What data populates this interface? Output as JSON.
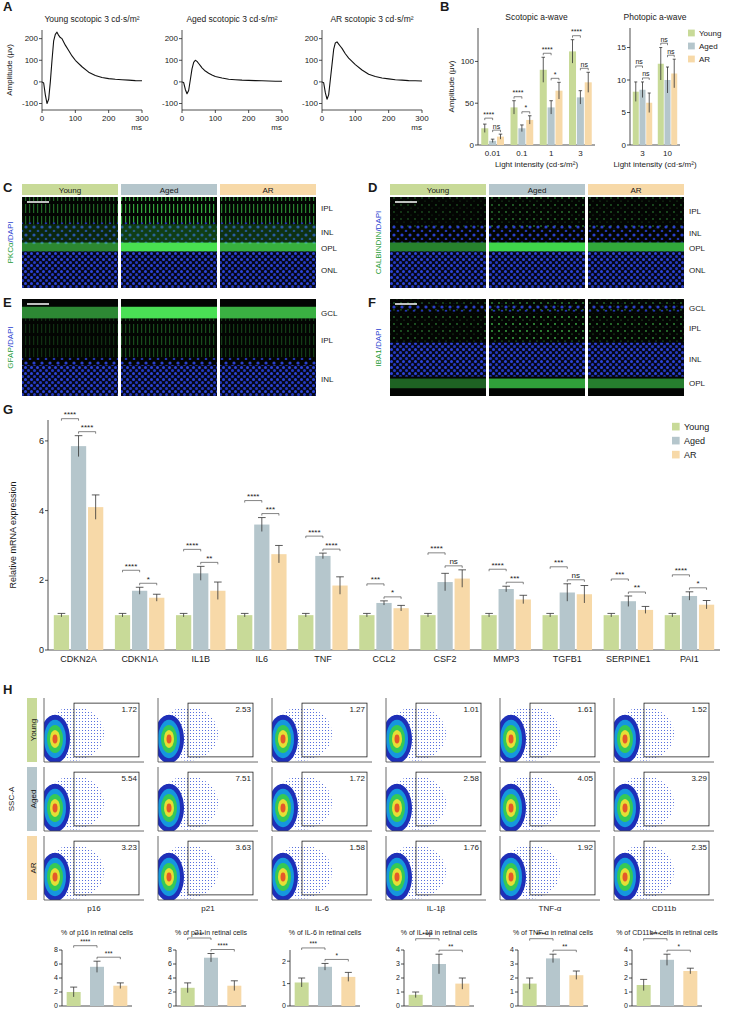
{
  "chart_data": [
    {
      "panel": "A",
      "type": "line",
      "title": "Young scotopic 3 cd·s/m²",
      "x": [
        0,
        5,
        10,
        15,
        20,
        25,
        30,
        35,
        40,
        45,
        50,
        55,
        60,
        70,
        80,
        90,
        100,
        120,
        140,
        160,
        180,
        200,
        220,
        240,
        260,
        280,
        300
      ],
      "values": [
        0,
        -5,
        -60,
        -100,
        -80,
        0,
        100,
        190,
        220,
        230,
        215,
        205,
        200,
        170,
        145,
        120,
        100,
        70,
        45,
        30,
        20,
        15,
        12,
        10,
        8,
        6,
        5
      ],
      "color": "#111111",
      "xlim": [
        0,
        300
      ],
      "xticks": [
        0,
        100,
        200,
        300
      ],
      "ylim": [
        -130,
        240
      ],
      "yticks": [
        -100,
        0,
        100,
        200
      ],
      "x_label": "ms",
      "y_label": "Amplitude (μv)"
    },
    {
      "type": "line",
      "title": "Aged scotopic 3 cd·s/m²",
      "x": [
        0,
        5,
        10,
        15,
        20,
        25,
        30,
        35,
        40,
        45,
        50,
        55,
        60,
        70,
        80,
        90,
        100,
        120,
        140,
        160,
        180,
        200,
        220,
        240,
        260,
        280,
        300
      ],
      "values": [
        0,
        -3,
        -35,
        -55,
        -40,
        10,
        60,
        90,
        100,
        95,
        85,
        75,
        65,
        50,
        40,
        32,
        25,
        18,
        12,
        10,
        8,
        7,
        6,
        5,
        4,
        3,
        3
      ],
      "color": "#111111",
      "xlim": [
        0,
        300
      ],
      "xticks": [
        0,
        100,
        200,
        300
      ],
      "ylim": [
        -130,
        240
      ],
      "yticks": [
        -100,
        0,
        100,
        200
      ],
      "x_label": "ms"
    },
    {
      "type": "line",
      "title": "AR scotopic 3 cd·s/m²",
      "x": [
        0,
        5,
        10,
        15,
        20,
        25,
        30,
        35,
        40,
        45,
        50,
        55,
        60,
        70,
        80,
        90,
        100,
        120,
        140,
        160,
        180,
        200,
        220,
        240,
        260,
        280,
        300
      ],
      "values": [
        0,
        -4,
        -50,
        -80,
        -60,
        10,
        80,
        150,
        180,
        185,
        175,
        165,
        155,
        130,
        110,
        95,
        80,
        55,
        35,
        25,
        18,
        14,
        10,
        8,
        6,
        5,
        4
      ],
      "color": "#111111",
      "xlim": [
        0,
        300
      ],
      "xticks": [
        0,
        100,
        200,
        300
      ],
      "ylim": [
        -130,
        240
      ],
      "yticks": [
        -100,
        0,
        100,
        200
      ],
      "x_label": "ms"
    },
    {
      "panel": "B",
      "type": "bar",
      "title": "Scotopic a-wave",
      "categories": [
        "0.01",
        "0.1",
        "1",
        "3"
      ],
      "series": [
        {
          "color": "#c8da98",
          "values": [
            20,
            45,
            90,
            112
          ],
          "errors": [
            5,
            8,
            15,
            14
          ]
        },
        {
          "color": "#b5c6cc",
          "values": [
            5,
            20,
            45,
            57
          ],
          "errors": [
            2,
            4,
            8,
            8
          ]
        },
        {
          "color": "#f7d9a8",
          "values": [
            10,
            30,
            65,
            75
          ],
          "errors": [
            3,
            5,
            10,
            12
          ]
        }
      ],
      "significance": [
        [
          "****",
          "ns"
        ],
        [
          "****",
          "*"
        ],
        [
          "****",
          "*"
        ],
        [
          "****",
          "ns"
        ]
      ],
      "ylim": [
        0,
        140
      ],
      "yticks": [
        0,
        50,
        100
      ],
      "x_label": "Light intensity (cd·s/m²)",
      "y_label": "Amplitude (μv)"
    },
    {
      "type": "bar",
      "title": "Photopic a-wave",
      "categories": [
        "3",
        "10"
      ],
      "series": [
        {
          "name": "Young",
          "color": "#c8da98",
          "values": [
            8.2,
            12.5
          ],
          "errors": [
            1.5,
            2.5
          ]
        },
        {
          "name": "Aged",
          "color": "#b5c6cc",
          "values": [
            8.5,
            10
          ],
          "errors": [
            1.2,
            2
          ]
        },
        {
          "name": "AR",
          "color": "#f7d9a8",
          "values": [
            6.5,
            11
          ],
          "errors": [
            1.5,
            2.2
          ]
        }
      ],
      "significance": [
        [
          "ns",
          "ns"
        ],
        [
          "ns",
          "ns"
        ]
      ],
      "ylim": [
        0,
        18
      ],
      "yticks": [
        0,
        5,
        10,
        15
      ],
      "x_label": "Light intensity (cd·s/m²)",
      "legend": "right"
    },
    {
      "panel": "G",
      "type": "bar",
      "categories": [
        "CDKN2A",
        "CDKN1A",
        "IL1B",
        "IL6",
        "TNF",
        "CCL2",
        "CSF2",
        "MMP3",
        "TGFB1",
        "SERPINE1",
        "PAI1"
      ],
      "series": [
        {
          "name": "Young",
          "color": "#c8da98",
          "values": [
            1,
            1,
            1,
            1,
            1,
            1,
            1,
            1,
            1,
            1,
            1
          ],
          "errors": [
            0.05,
            0.05,
            0.05,
            0.05,
            0.05,
            0.05,
            0.05,
            0.05,
            0.05,
            0.05,
            0.05
          ]
        },
        {
          "name": "Aged",
          "color": "#b5c6cc",
          "values": [
            5.85,
            1.7,
            2.2,
            3.6,
            2.7,
            1.35,
            1.95,
            1.75,
            1.65,
            1.4,
            1.55
          ],
          "errors": [
            0.3,
            0.1,
            0.2,
            0.2,
            0.08,
            0.06,
            0.25,
            0.08,
            0.25,
            0.15,
            0.12
          ]
        },
        {
          "name": "AR",
          "color": "#f7d9a8",
          "values": [
            4.1,
            1.5,
            1.7,
            2.75,
            1.85,
            1.2,
            2.05,
            1.45,
            1.6,
            1.15,
            1.3
          ],
          "errors": [
            0.35,
            0.1,
            0.25,
            0.25,
            0.25,
            0.08,
            0.25,
            0.12,
            0.25,
            0.1,
            0.12
          ]
        }
      ],
      "significance": [
        [
          "****",
          "****"
        ],
        [
          "****",
          "*"
        ],
        [
          "****",
          "**"
        ],
        [
          "****",
          "***"
        ],
        [
          "****",
          "****"
        ],
        [
          "***",
          "*"
        ],
        [
          "****",
          "ns"
        ],
        [
          "****",
          "***"
        ],
        [
          "***",
          "ns"
        ],
        [
          "***",
          "**"
        ],
        [
          "****",
          "*"
        ]
      ],
      "ylim": [
        0,
        6.6
      ],
      "yticks": [
        0,
        2,
        4,
        6
      ],
      "y_label": "Relative mRNA expression",
      "legend": "top-right"
    },
    {
      "type": "bar",
      "title": "% of p16 in retinal cells",
      "categories": [
        null,
        null,
        null
      ],
      "values": [
        2.0,
        5.6,
        2.9
      ],
      "errors": [
        0.7,
        0.8,
        0.4
      ],
      "colors": [
        "#c8da98",
        "#b5c6cc",
        "#f7d9a8"
      ],
      "significance": [
        "****",
        "***"
      ],
      "ylim": [
        0,
        8
      ],
      "yticks": [
        0,
        2,
        4,
        6,
        8
      ]
    },
    {
      "type": "bar",
      "title": "% of p21 in retinal cells",
      "categories": [
        null,
        null,
        null
      ],
      "values": [
        2.6,
        6.9,
        2.9
      ],
      "errors": [
        0.7,
        0.6,
        0.7
      ],
      "colors": [
        "#c8da98",
        "#b5c6cc",
        "#f7d9a8"
      ],
      "significance": [
        "****",
        "****"
      ],
      "ylim": [
        0,
        8
      ],
      "yticks": [
        0,
        2,
        4,
        6,
        8
      ]
    },
    {
      "type": "bar",
      "title": "% of IL-6 in retinal cells",
      "categories": [
        null,
        null,
        null
      ],
      "values": [
        1.05,
        1.75,
        1.3
      ],
      "errors": [
        0.2,
        0.15,
        0.2
      ],
      "colors": [
        "#c8da98",
        "#b5c6cc",
        "#f7d9a8"
      ],
      "significance": [
        "***",
        "*"
      ],
      "ylim": [
        0,
        2.5
      ],
      "yticks": [
        0,
        1,
        2
      ]
    },
    {
      "type": "bar",
      "title": "% of IL-1β in retinal cells",
      "categories": [
        null,
        null,
        null
      ],
      "values": [
        0.8,
        3.0,
        1.6
      ],
      "errors": [
        0.2,
        0.7,
        0.4
      ],
      "colors": [
        "#c8da98",
        "#b5c6cc",
        "#f7d9a8"
      ],
      "significance": [
        "****",
        "**"
      ],
      "ylim": [
        0,
        4
      ],
      "yticks": [
        0,
        1,
        2,
        3,
        4
      ]
    },
    {
      "type": "bar",
      "title": "% of TNF-α in retinal cells",
      "categories": [
        null,
        null,
        null
      ],
      "values": [
        1.6,
        3.4,
        2.2
      ],
      "errors": [
        0.4,
        0.3,
        0.3
      ],
      "colors": [
        "#c8da98",
        "#b5c6cc",
        "#f7d9a8"
      ],
      "significance": [
        "****",
        "**"
      ],
      "ylim": [
        0,
        4
      ],
      "yticks": [
        0,
        1,
        2,
        3,
        4
      ]
    },
    {
      "type": "bar",
      "title": "% of CD11b+ cells in retinal cells",
      "categories": [
        null,
        null,
        null
      ],
      "values": [
        1.5,
        3.3,
        2.5
      ],
      "errors": [
        0.4,
        0.4,
        0.2
      ],
      "colors": [
        "#c8da98",
        "#b5c6cc",
        "#f7d9a8"
      ],
      "significance": [
        "****",
        "*"
      ],
      "ylim": [
        0,
        4
      ],
      "yticks": [
        0,
        1,
        2,
        3,
        4
      ]
    }
  ],
  "images": [
    {
      "panel": "C",
      "stain": "PKCα/DAPI",
      "columns": [
        "Young",
        "Aged",
        "AR"
      ],
      "colors": [
        "#c8da98",
        "#b5c6cc",
        "#f7d9a8"
      ],
      "layers": [
        "IPL",
        "INL",
        "OPL",
        "ONL"
      ]
    },
    {
      "panel": "D",
      "stain": "CALBINDIN/DAPI",
      "columns": [
        "Young",
        "Aged",
        "AR"
      ],
      "colors": [
        "#c8da98",
        "#b5c6cc",
        "#f7d9a8"
      ],
      "layers": [
        "IPL",
        "INL",
        "OPL",
        "ONL"
      ]
    },
    {
      "panel": "E",
      "stain": "GFAP/DAPI",
      "layers": [
        "GCL",
        "IPL",
        "INL"
      ]
    },
    {
      "panel": "F",
      "stain": "IBA1/DAPI",
      "layers": [
        "GCL",
        "IPL",
        "INL",
        "OPL"
      ]
    }
  ],
  "flow": {
    "panel": "H",
    "rows": [
      "Young",
      "Aged",
      "AR"
    ],
    "colors": [
      "#c8da98",
      "#b5c6cc",
      "#f7d9a8"
    ],
    "markers": [
      "p16",
      "p21",
      "IL-6",
      "IL-1β",
      "TNF-α",
      "CD11b"
    ],
    "y_label": "SSC-A",
    "percentages": [
      [
        1.72,
        2.53,
        1.27,
        1.01,
        1.61,
        1.52
      ],
      [
        5.54,
        7.51,
        1.72,
        2.58,
        4.05,
        3.29
      ],
      [
        3.23,
        3.63,
        1.58,
        1.76,
        1.92,
        2.35
      ]
    ]
  }
}
